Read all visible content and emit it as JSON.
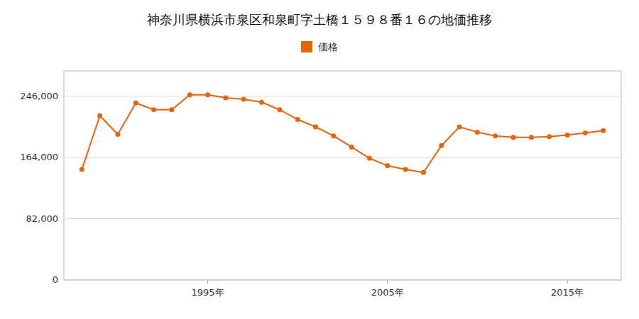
{
  "chart_data": {
    "type": "line",
    "title": "神奈川県横浜市泉区和泉町字土橋１５９８番１６の地価推移",
    "x": [
      1988,
      1989,
      1990,
      1991,
      1992,
      1993,
      1994,
      1995,
      1996,
      1997,
      1998,
      1999,
      2000,
      2001,
      2002,
      2003,
      2004,
      2005,
      2006,
      2007,
      2008,
      2009,
      2010,
      2011,
      2012,
      2013,
      2014,
      2015,
      2016,
      2017
    ],
    "series": [
      {
        "name": "価格",
        "color": "#E8640A",
        "marker": "circle",
        "values": [
          148000,
          220000,
          195000,
          237000,
          228000,
          228000,
          248000,
          248000,
          244000,
          242000,
          238000,
          228000,
          215000,
          205000,
          193000,
          178000,
          163000,
          153000,
          148000,
          144000,
          180000,
          205000,
          198000,
          193000,
          191000,
          191000,
          192000,
          194000,
          197000,
          200000
        ]
      }
    ],
    "xlim": [
      1987,
      2018
    ],
    "xticks": [
      {
        "value": 1995,
        "label": "1995年"
      },
      {
        "value": 2005,
        "label": "2005年"
      },
      {
        "value": 2015,
        "label": "2015年"
      }
    ],
    "ylim": [
      0,
      280000
    ],
    "yticks": [
      0,
      {
        "value": 82000,
        "label": "82,000"
      },
      {
        "value": 164000,
        "label": "164,000"
      },
      {
        "value": 246000,
        "label": "246,000"
      }
    ],
    "grid": true,
    "legend": "top"
  }
}
